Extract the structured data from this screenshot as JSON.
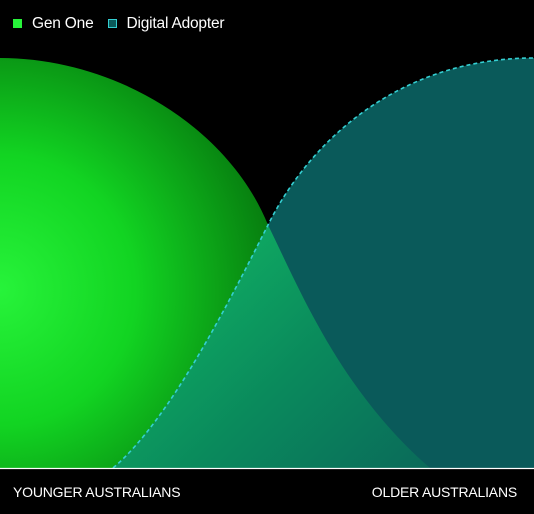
{
  "legend": {
    "items": [
      {
        "label": "Gen One",
        "style": "solid",
        "color": "#27f33a"
      },
      {
        "label": "Digital Adopter",
        "style": "outline-dashed",
        "color": "#0a5a5a",
        "stroke": "#35cfd2"
      }
    ]
  },
  "chart_data": {
    "type": "area",
    "title": "",
    "xlabel_left": "YOUNGER AUSTRALIANS",
    "xlabel_right": "OLDER AUSTRALIANS",
    "series": [
      {
        "name": "Gen One",
        "color": "#27f33a"
      },
      {
        "name": "Digital Adopter",
        "color": "#0a5a5a",
        "stroke": "#35cfd2"
      }
    ],
    "overlap_color": "#0c8c5a",
    "grid": false,
    "legend_position": "top-left"
  },
  "axis": {
    "left": "YOUNGER AUSTRALIANS",
    "right": "OLDER AUSTRALIANS"
  }
}
